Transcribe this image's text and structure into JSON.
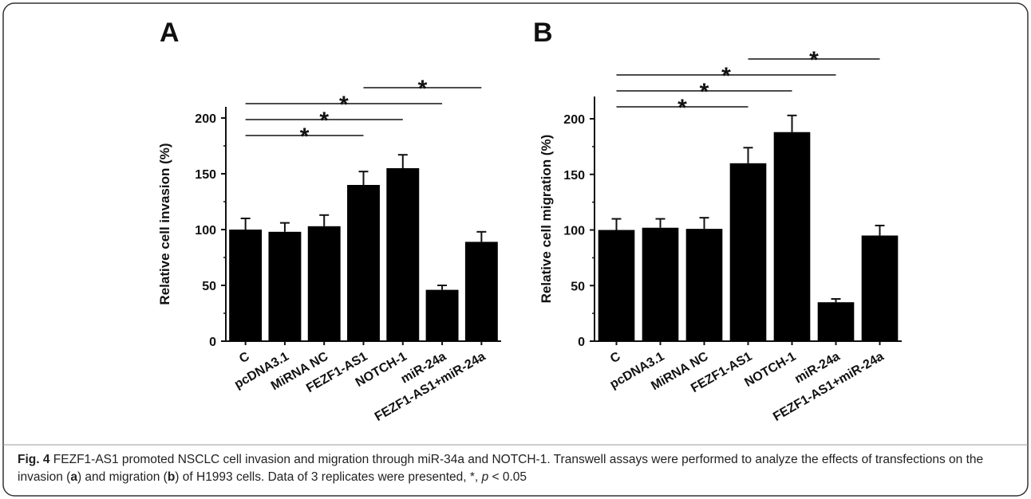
{
  "caption": {
    "fig_label": "Fig. 4",
    "text_1": "FEZF1-AS1 promoted NSCLC cell invasion and migration through miR-34a and NOTCH-1. Transwell assays were performed to analyze the effects of transfections on the invasion (",
    "mark_a": "a",
    "text_2": ") and migration (",
    "mark_b": "b",
    "text_3": ") of H1993 cells. Data of 3 replicates were presented, *, ",
    "p_symbol": "p",
    "text_4": " < 0.05"
  },
  "chart_data": [
    {
      "type": "bar",
      "panel": "A",
      "ylabel": "Relative cell invasion (%)",
      "xlabel": "",
      "title": "",
      "ylim": [
        0,
        210
      ],
      "yticks": [
        0,
        50,
        100,
        150,
        200
      ],
      "categories": [
        "C",
        "pcDNA3.1",
        "MiRNA NC",
        "FEZF1-AS1",
        "NOTCH-1",
        "miR-24a",
        "FEZF1-AS1+miR-24a"
      ],
      "values": [
        100,
        98,
        103,
        140,
        155,
        46,
        89
      ],
      "errors": [
        10,
        8,
        10,
        12,
        12,
        4,
        9
      ],
      "significance": [
        {
          "from": 0,
          "to": 3,
          "label": "*"
        },
        {
          "from": 0,
          "to": 4,
          "label": "*"
        },
        {
          "from": 0,
          "to": 5,
          "label": "*"
        },
        {
          "from": 3,
          "to": 6,
          "label": "*"
        }
      ],
      "grid": false,
      "bar_color": "#000000"
    },
    {
      "type": "bar",
      "panel": "B",
      "ylabel": "Relative cell migration (%)",
      "xlabel": "",
      "title": "",
      "ylim": [
        0,
        220
      ],
      "yticks": [
        0,
        50,
        100,
        150,
        200
      ],
      "categories": [
        "C",
        "pcDNA3.1",
        "MiRNA NC",
        "FEZF1-AS1",
        "NOTCH-1",
        "miR-24a",
        "FEZF1-AS1+miR-24a"
      ],
      "values": [
        100,
        102,
        101,
        160,
        188,
        35,
        95
      ],
      "errors": [
        10,
        8,
        10,
        14,
        15,
        3,
        9
      ],
      "significance": [
        {
          "from": 0,
          "to": 3,
          "label": "*"
        },
        {
          "from": 0,
          "to": 4,
          "label": "*"
        },
        {
          "from": 0,
          "to": 5,
          "label": "*"
        },
        {
          "from": 3,
          "to": 6,
          "label": "*"
        }
      ],
      "grid": false,
      "bar_color": "#000000"
    }
  ]
}
